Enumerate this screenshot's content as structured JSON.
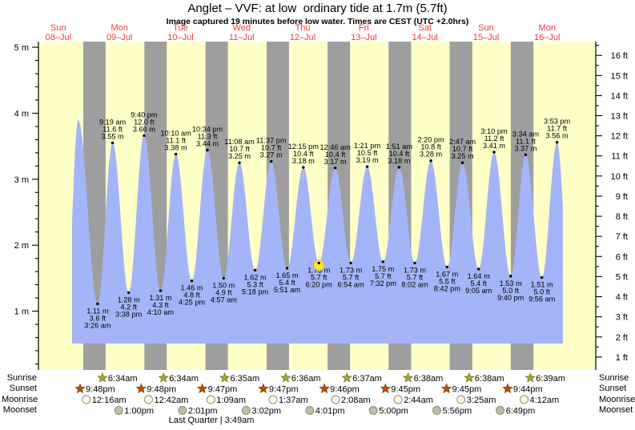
{
  "title": "Anglet – VVF: at low  ordinary tide at 1.7m (5.7ft)",
  "subtitle": "Image captured 19 minutes before low water. Times are CEST (UTC +2.0hrs)",
  "colors": {
    "plot_bg": "#FFFFC8",
    "night_band": "#9E9E9E",
    "tide_fill": "#A4B4F8",
    "day_label": "#EE3B3B",
    "annotation": "#000000",
    "axis": "#000000",
    "sunrise_star": "#A8A832",
    "sunrise_star_edge": "#6E6E1E",
    "sunset_star": "#B85200",
    "sunset_star_edge": "#7A3600",
    "moonrise_fill": "#FFFFDE",
    "moonset_fill": "#BFBFA0",
    "moon_edge": "#8A8A8A",
    "current_marker": "#FFE433"
  },
  "almanac": {
    "labels": {
      "sunrise": "Sunrise",
      "sunset": "Sunset",
      "moonrise": "Moonrise",
      "moonset": "Moonset"
    },
    "moon_phase": "Last Quarter | 3:49am"
  },
  "chart_data": {
    "type": "area",
    "y_axis_left": {
      "unit": "m",
      "tick_min": 1,
      "tick_max": 5
    },
    "y_axis_right": {
      "unit": "ft",
      "tick_min": 1,
      "tick_max": 16
    },
    "days": [
      {
        "weekday": "Sun",
        "date": "08–Jul"
      },
      {
        "weekday": "Mon",
        "date": "09–Jul"
      },
      {
        "weekday": "Tue",
        "date": "10–Jul"
      },
      {
        "weekday": "Wed",
        "date": "11–Jul"
      },
      {
        "weekday": "Thu",
        "date": "12–Jul"
      },
      {
        "weekday": "Fri",
        "date": "13–Jul"
      },
      {
        "weekday": "Sat",
        "date": "14–Jul"
      },
      {
        "weekday": "Sun",
        "date": "15–Jul"
      },
      {
        "weekday": "Mon",
        "date": "16–Jul"
      }
    ],
    "tides": [
      {
        "type": "high",
        "t": 19.8,
        "h": 3.9,
        "labeled": false
      },
      {
        "type": "low",
        "t": 27.433,
        "h": 1.11,
        "m": "1.11 m",
        "ft": "3.6 ft",
        "time": "3:26 am"
      },
      {
        "type": "high",
        "t": 33.317,
        "h": 3.55,
        "m": "3.55 m",
        "ft": "11.6 ft",
        "time": "9:19 am"
      },
      {
        "type": "low",
        "t": 39.633,
        "h": 1.28,
        "m": "1.28 m",
        "ft": "4.2 ft",
        "time": "3:38 pm"
      },
      {
        "type": "high",
        "t": 45.667,
        "h": 3.66,
        "m": "3.66 m",
        "ft": "12.0 ft",
        "time": "9:40 pm"
      },
      {
        "type": "low",
        "t": 52.167,
        "h": 1.31,
        "m": "1.31 m",
        "ft": "4.3 ft",
        "time": "4:10 am"
      },
      {
        "type": "high",
        "t": 58.167,
        "h": 3.38,
        "m": "3.38 m",
        "ft": "11.1 ft",
        "time": "10:10 am"
      },
      {
        "type": "low",
        "t": 64.417,
        "h": 1.46,
        "m": "1.46 m",
        "ft": "4.8 ft",
        "time": "4:25 pm"
      },
      {
        "type": "high",
        "t": 70.567,
        "h": 3.44,
        "m": "3.44 m",
        "ft": "11.3 ft",
        "time": "10:34 pm"
      },
      {
        "type": "low",
        "t": 76.95,
        "h": 1.5,
        "m": "1.50 m",
        "ft": "4.9 ft",
        "time": "4:57 am"
      },
      {
        "type": "high",
        "t": 83.133,
        "h": 3.25,
        "m": "3.25 m",
        "ft": "10.7 ft",
        "time": "11:08 am"
      },
      {
        "type": "low",
        "t": 89.3,
        "h": 1.62,
        "m": "1.62 m",
        "ft": "5.3 ft",
        "time": "5:18 pm"
      },
      {
        "type": "high",
        "t": 95.617,
        "h": 3.27,
        "m": "3.27 m",
        "ft": "10.7 ft",
        "time": "11:37 pm"
      },
      {
        "type": "low",
        "t": 101.85,
        "h": 1.65,
        "m": "1.65 m",
        "ft": "5.4 ft",
        "time": "5:51 am"
      },
      {
        "type": "high",
        "t": 108.25,
        "h": 3.18,
        "m": "3.18 m",
        "ft": "10.4 ft",
        "time": "12:15 pm"
      },
      {
        "type": "low",
        "t": 114.333,
        "h": 1.73,
        "m": "1.73 m",
        "ft": "5.7 ft",
        "time": "6:20 pm",
        "current": true
      },
      {
        "type": "high",
        "t": 120.767,
        "h": 3.17,
        "m": "3.17 m",
        "ft": "10.4 ft",
        "time": "12:46 am"
      },
      {
        "type": "low",
        "t": 126.9,
        "h": 1.73,
        "m": "1.73 m",
        "ft": "5.7 ft",
        "time": "6:54 am"
      },
      {
        "type": "high",
        "t": 133.35,
        "h": 3.19,
        "m": "3.19 m",
        "ft": "10.5 ft",
        "time": "1:21 pm"
      },
      {
        "type": "low",
        "t": 139.533,
        "h": 1.75,
        "m": "1.75 m",
        "ft": "5.7 ft",
        "time": "7:32 pm"
      },
      {
        "type": "high",
        "t": 145.85,
        "h": 3.18,
        "m": "3.18 m",
        "ft": "10.4 ft",
        "time": "1:51 am"
      },
      {
        "type": "low",
        "t": 152.033,
        "h": 1.73,
        "m": "1.73 m",
        "ft": "5.7 ft",
        "time": "8:02 am"
      },
      {
        "type": "high",
        "t": 158.333,
        "h": 3.28,
        "m": "3.28 m",
        "ft": "10.8 ft",
        "time": "2:20 pm"
      },
      {
        "type": "low",
        "t": 164.7,
        "h": 1.67,
        "m": "1.67 m",
        "ft": "5.5 ft",
        "time": "8:42 pm"
      },
      {
        "type": "high",
        "t": 170.783,
        "h": 3.25,
        "m": "3.25 m",
        "ft": "10.7 ft",
        "time": "2:47 am"
      },
      {
        "type": "low",
        "t": 177.083,
        "h": 1.64,
        "m": "1.64 m",
        "ft": "5.4 ft",
        "time": "9:05 am"
      },
      {
        "type": "high",
        "t": 183.167,
        "h": 3.41,
        "m": "3.41 m",
        "ft": "11.2 ft",
        "time": "3:10 pm"
      },
      {
        "type": "low",
        "t": 189.667,
        "h": 1.53,
        "m": "1.53 m",
        "ft": "5.0 ft",
        "time": "9:40 pm"
      },
      {
        "type": "high",
        "t": 195.567,
        "h": 3.37,
        "m": "3.37 m",
        "ft": "11.1 ft",
        "time": "3:34 am"
      },
      {
        "type": "low",
        "t": 201.933,
        "h": 1.51,
        "m": "1.51 m",
        "ft": "5.0 ft",
        "time": "9:56 am"
      },
      {
        "type": "high",
        "t": 207.883,
        "h": 3.56,
        "m": "3.56 m",
        "ft": "11.7 ft",
        "time": "3:53 pm"
      }
    ],
    "sun": {
      "sunrise": [
        {
          "time": "6:34am",
          "t": 30.567
        },
        {
          "time": "6:34am",
          "t": 54.567
        },
        {
          "time": "6:35am",
          "t": 78.583
        },
        {
          "time": "6:36am",
          "t": 102.6
        },
        {
          "time": "6:37am",
          "t": 126.617
        },
        {
          "time": "6:38am",
          "t": 150.633
        },
        {
          "time": "6:38am",
          "t": 174.633
        },
        {
          "time": "6:39am",
          "t": 198.65
        }
      ],
      "sunset": [
        {
          "time": "9:48pm",
          "t": 21.8
        },
        {
          "time": "9:48pm",
          "t": 45.8
        },
        {
          "time": "9:47pm",
          "t": 69.783
        },
        {
          "time": "9:47pm",
          "t": 93.783
        },
        {
          "time": "9:46pm",
          "t": 117.767
        },
        {
          "time": "9:45pm",
          "t": 141.75
        },
        {
          "time": "9:45pm",
          "t": 165.75
        },
        {
          "time": "9:44pm",
          "t": 189.733
        }
      ]
    },
    "moon": {
      "moonrise": [
        {
          "time": "12:16am",
          "t": 24.267
        },
        {
          "time": "12:42am",
          "t": 48.7
        },
        {
          "time": "1:09am",
          "t": 73.15
        },
        {
          "time": "1:37am",
          "t": 97.617
        },
        {
          "time": "2:08am",
          "t": 122.133
        },
        {
          "time": "2:44am",
          "t": 146.733
        },
        {
          "time": "3:25am",
          "t": 171.417
        },
        {
          "time": "4:12am",
          "t": 196.2
        }
      ],
      "moonset": [
        {
          "time": "1:00pm",
          "t": 37.0
        },
        {
          "time": "2:01pm",
          "t": 62.017
        },
        {
          "time": "3:02pm",
          "t": 87.033
        },
        {
          "time": "4:01pm",
          "t": 112.017
        },
        {
          "time": "5:00pm",
          "t": 137.0
        },
        {
          "time": "5:56pm",
          "t": 161.933
        },
        {
          "time": "6:49pm",
          "t": 186.817
        }
      ]
    }
  }
}
